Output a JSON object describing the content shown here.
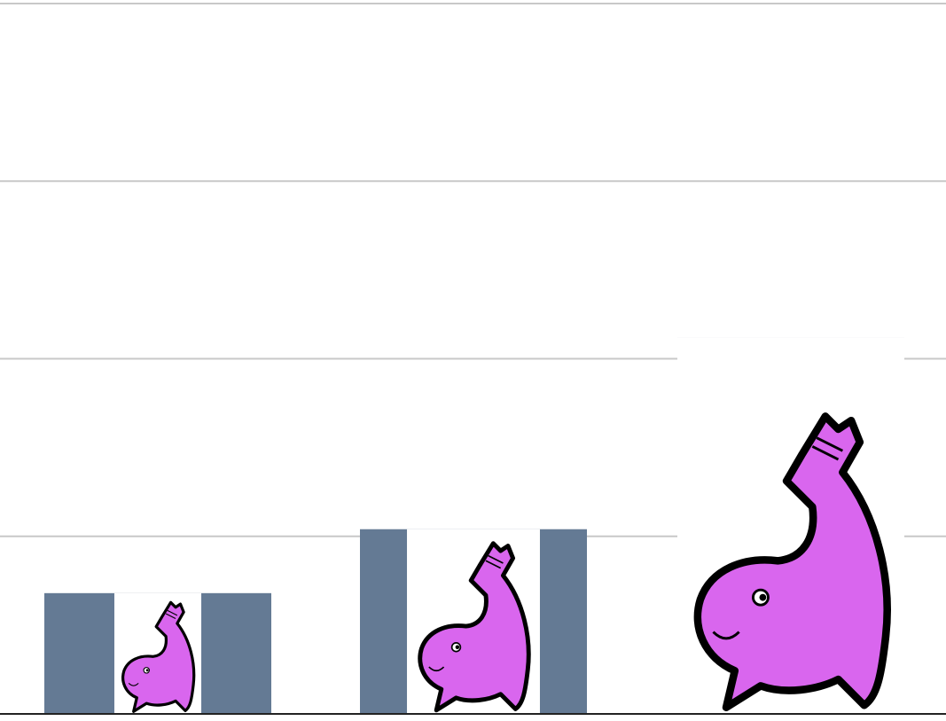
{
  "chart_data": {
    "type": "bar",
    "categories": [
      null,
      null,
      null
    ],
    "values": [
      0.68,
      1.04,
      2.12
    ],
    "color": "#647a94",
    "icon_color": "#d966ee",
    "ylim": [
      0,
      4
    ],
    "yticks": [
      0,
      1,
      2,
      3,
      4
    ],
    "grid": true
  }
}
